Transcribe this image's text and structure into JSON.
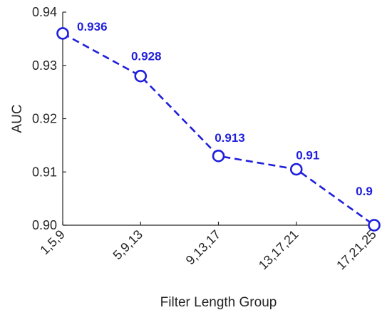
{
  "chart_data": {
    "type": "line",
    "categories": [
      "1,5,9",
      "5,9,13",
      "9,13,17",
      "13,17,21",
      "17,21,25"
    ],
    "series": [
      {
        "values": [
          0.936,
          0.928,
          0.913,
          0.9105,
          0.9
        ]
      }
    ],
    "data_labels": [
      "0.936",
      "0.928",
      "0.913",
      "0.91",
      "0.9"
    ],
    "yticks": [
      0.9,
      0.91,
      0.92,
      0.93,
      0.94
    ],
    "ytick_labels": [
      "0.90",
      "0.91",
      "0.92",
      "0.93",
      "0.94"
    ],
    "ylim": [
      0.9,
      0.94
    ],
    "xlabel": "Filter Length Group",
    "ylabel": "AUC",
    "grid": false,
    "line_style": "dashed",
    "marker": "open-circle",
    "color": "#1f1fdc"
  }
}
